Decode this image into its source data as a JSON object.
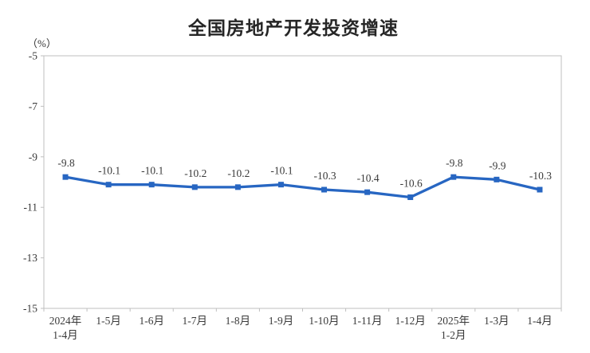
{
  "chart": {
    "title": "全国房地产开发投资增速",
    "unit_label": "（%）"
  },
  "chart_data": {
    "type": "line",
    "title": "全国房地产开发投资增速",
    "ylabel": "（%）",
    "categories": [
      "2024年\n1-4月",
      "1-5月",
      "1-6月",
      "1-7月",
      "1-8月",
      "1-9月",
      "1-10月",
      "1-11月",
      "1-12月",
      "2025年\n1-2月",
      "1-3月",
      "1-4月"
    ],
    "values": [
      -9.8,
      -10.1,
      -10.1,
      -10.2,
      -10.2,
      -10.1,
      -10.3,
      -10.4,
      -10.6,
      -9.8,
      -9.9,
      -10.3
    ],
    "data_labels": [
      "-9.8",
      "-10.1",
      "-10.1",
      "-10.2",
      "-10.2",
      "-10.1",
      "-10.3",
      "-10.4",
      "-10.6",
      "-9.8",
      "-9.9",
      "-10.3"
    ],
    "yticks": [
      -5,
      -7,
      -9,
      -11,
      -13,
      -15
    ],
    "ylim": [
      -15,
      -5
    ],
    "grid": false,
    "legend": "none",
    "line_color": "#2766C2",
    "marker": "square",
    "axis_color": "#BFBFBF",
    "label_color": "#3A3A3A"
  }
}
